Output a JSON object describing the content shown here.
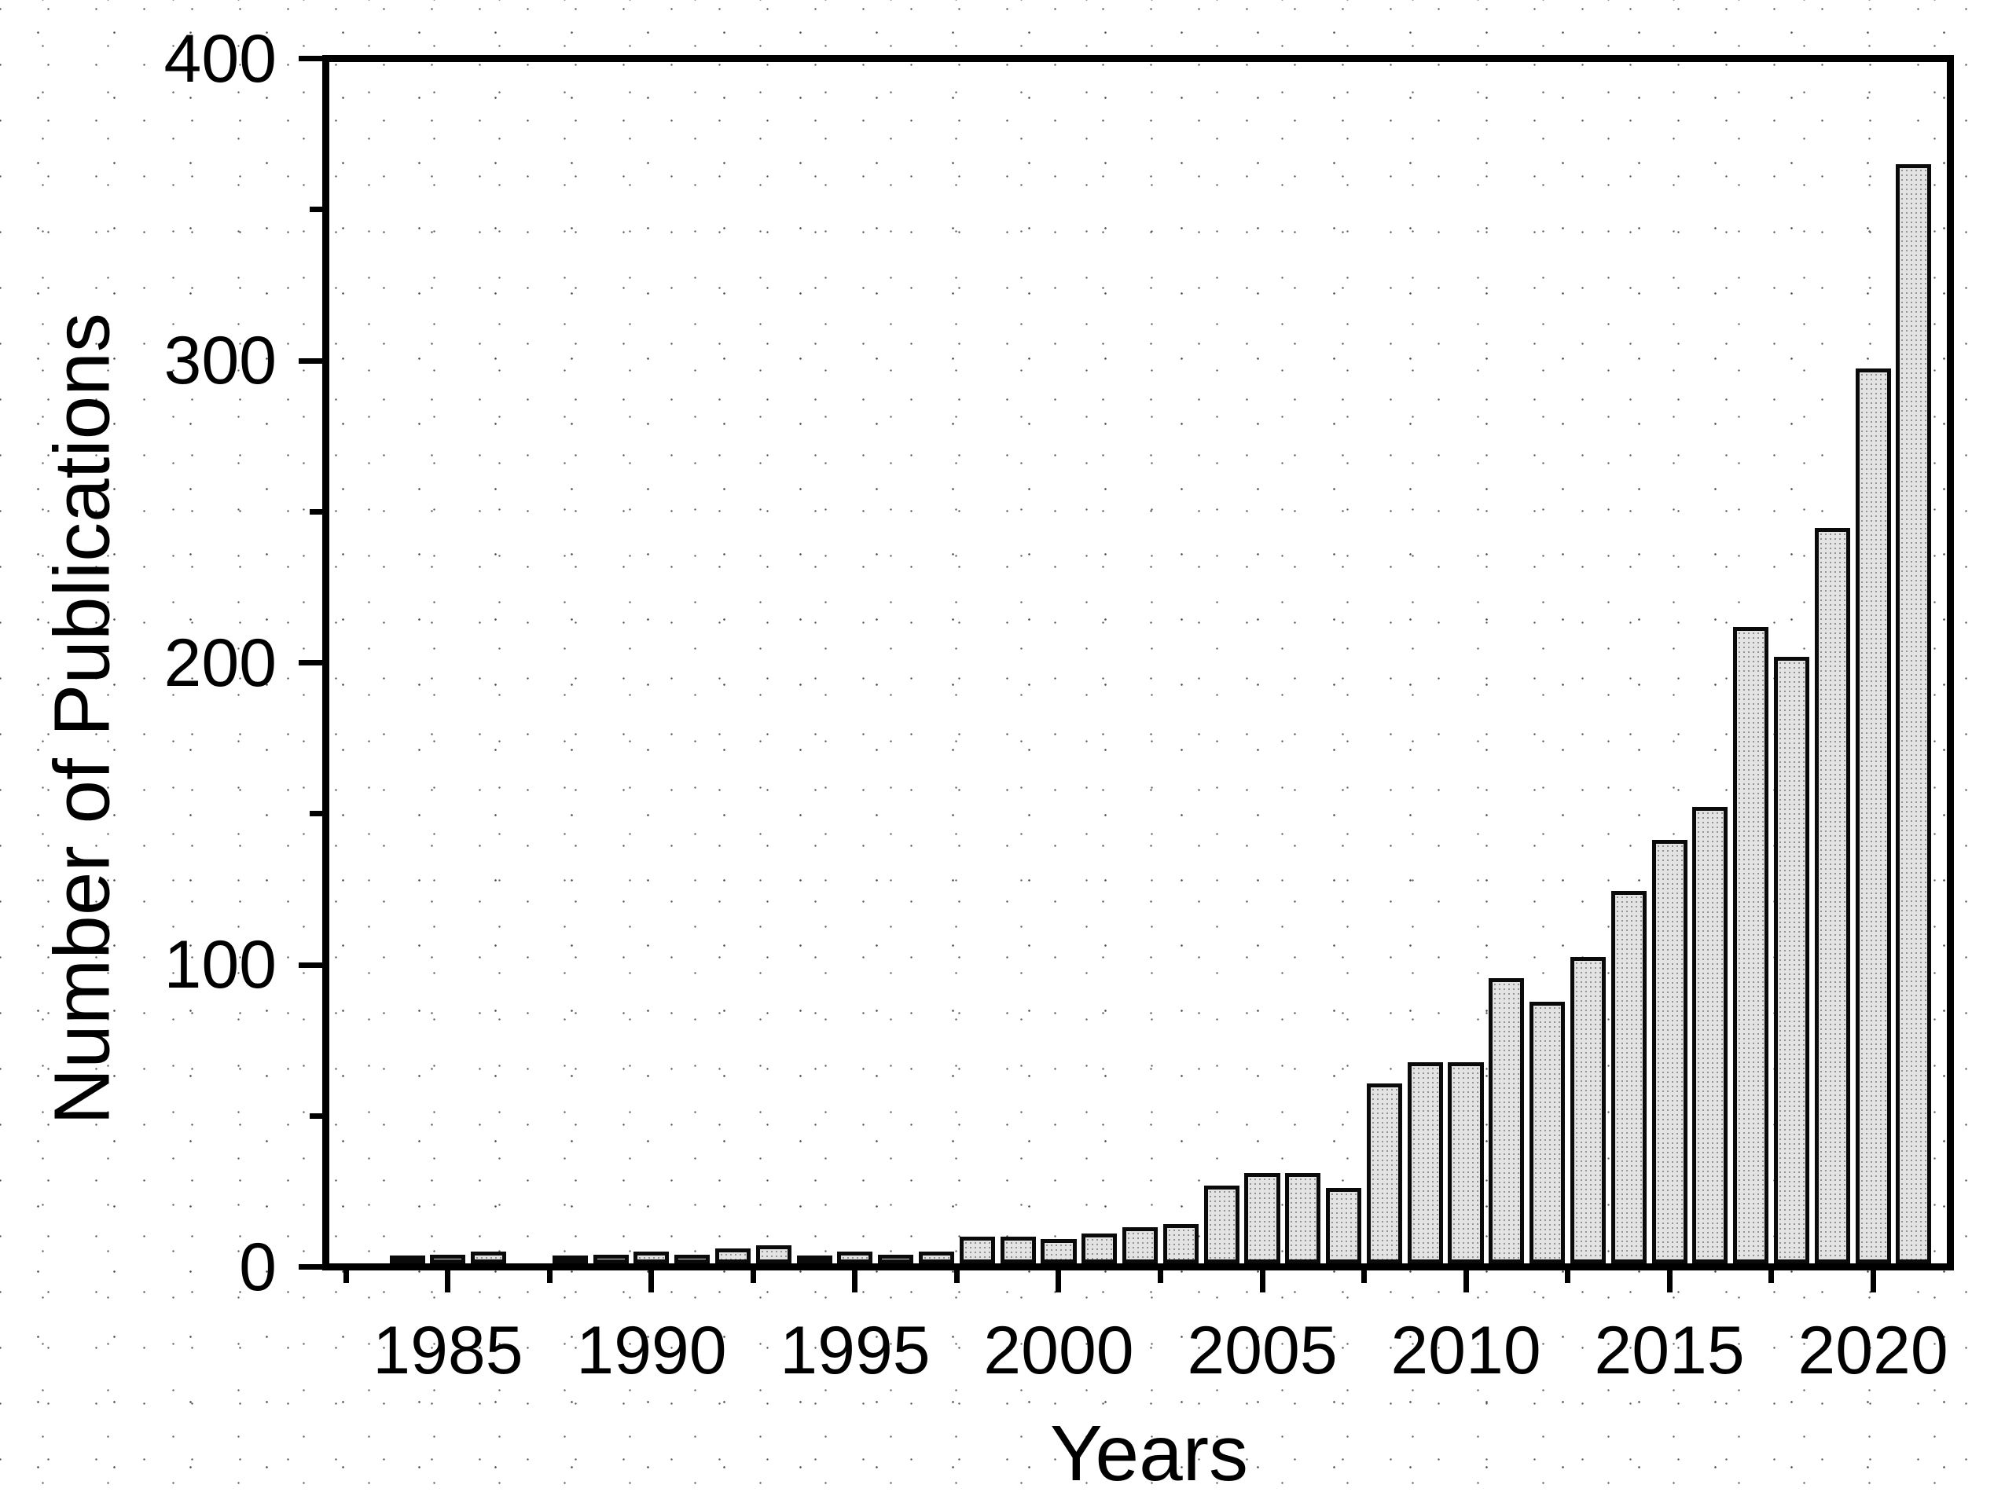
{
  "chart_data": {
    "type": "bar",
    "title": "",
    "xlabel": "Years",
    "ylabel": "Number of Publications",
    "x": [
      1984,
      1985,
      1986,
      1987,
      1988,
      1989,
      1990,
      1991,
      1992,
      1993,
      1994,
      1995,
      1996,
      1997,
      1998,
      1999,
      2000,
      2001,
      2002,
      2003,
      2004,
      2005,
      2006,
      2007,
      2008,
      2009,
      2010,
      2011,
      2012,
      2013,
      2014,
      2015,
      2016,
      2017,
      2018,
      2019,
      2020,
      2021
    ],
    "values": [
      1,
      3,
      4,
      0,
      1,
      3,
      4,
      3,
      5,
      6,
      1,
      4,
      3,
      4,
      9,
      9,
      8,
      10,
      12,
      13,
      26,
      30,
      30,
      25,
      60,
      67,
      67,
      95,
      87,
      102,
      124,
      141,
      152,
      212,
      202,
      245,
      298,
      366
    ],
    "xlim": [
      1982.0,
      2021.9
    ],
    "ylim": [
      0,
      400
    ],
    "x_major_ticks": [
      1985,
      1990,
      1995,
      2000,
      2005,
      2010,
      2015,
      2020
    ],
    "x_minor_ticks": [
      1982.5,
      1987.5,
      1992.5,
      1997.5,
      2002.5,
      2007.5,
      2012.5,
      2017.5
    ],
    "y_major_ticks": [
      0,
      100,
      200,
      300,
      400
    ],
    "y_minor_ticks": [
      50,
      150,
      250,
      350
    ],
    "bar_width_years": 0.87,
    "bar_fill": "#e3e3e3",
    "bar_border": "#0a0a0a",
    "axis_color": "#000000",
    "grid": false,
    "legend": null
  }
}
